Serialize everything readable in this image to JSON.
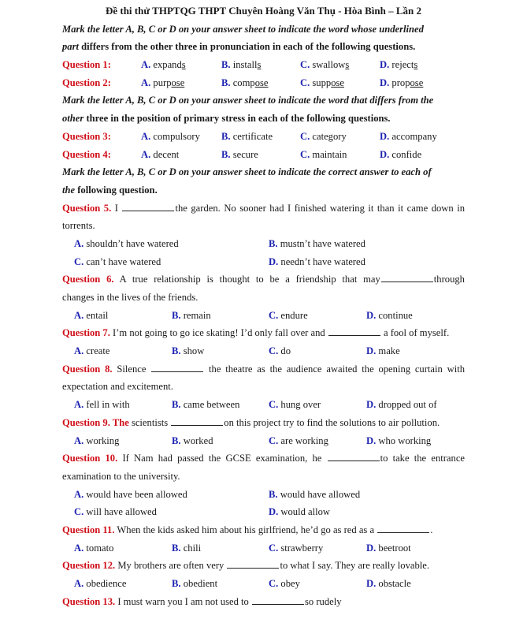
{
  "header": {
    "title": "Đề thi thử THPTQG THPT Chuyên Hoàng Văn Thụ - Hòa Bình – Lần 2"
  },
  "instructions": [
    {
      "line1": "Mark the letter A, B, C or D on your answer sheet to indicate the word whose underlined",
      "line2_italic": "part",
      "line2_rest": " differs from the other three in pronunciation in each of the following questions."
    },
    {
      "line1": "Mark the letter A, B, C or D on your answer sheet to indicate the word that differs from the",
      "line2_italic": "other",
      "line2_rest": " three in the position of primary stress in each of the following questions."
    },
    {
      "line1": "Mark the letter A, B, C or D on your answer sheet to indicate the correct answer to each of",
      "line2_italic": "the",
      "line2_rest": " following question."
    }
  ],
  "phonetic": [
    {
      "label": "Question 1:",
      "options": [
        {
          "letter": "A.",
          "stem": "expand",
          "under": "s"
        },
        {
          "letter": "B.",
          "stem": "install",
          "under": "s"
        },
        {
          "letter": "C.",
          "stem": "swallow",
          "under": "s"
        },
        {
          "letter": "D.",
          "stem": "reject",
          "under": "s"
        }
      ]
    },
    {
      "label": "Question 2:",
      "options": [
        {
          "letter": "A.",
          "stem": "purp",
          "under": "ose"
        },
        {
          "letter": "B.",
          "stem": "comp",
          "under": "ose"
        },
        {
          "letter": "C.",
          "stem": "supp",
          "under": "ose"
        },
        {
          "letter": "D.",
          "stem": "prop",
          "under": "ose"
        }
      ]
    }
  ],
  "stress": [
    {
      "label": "Question 3:",
      "options": [
        {
          "letter": "A.",
          "text": "compulsory"
        },
        {
          "letter": "B.",
          "text": "certificate"
        },
        {
          "letter": "C.",
          "text": "category"
        },
        {
          "letter": "D.",
          "text": "accompany"
        }
      ]
    },
    {
      "label": "Question 4:",
      "options": [
        {
          "letter": "A.",
          "text": "decent"
        },
        {
          "letter": "B.",
          "text": "secure"
        },
        {
          "letter": "C.",
          "text": "maintain"
        },
        {
          "letter": "D.",
          "text": "confide"
        }
      ]
    }
  ],
  "questions": [
    {
      "label": "Question 5.",
      "before": " I ",
      "after": "the garden. No sooner had I finished watering it than it came down in",
      "cont": "torrents.",
      "options": [
        {
          "letter": "A.",
          "text": "shouldn’t have watered"
        },
        {
          "letter": "B.",
          "text": "mustn’t have watered"
        },
        {
          "letter": "C.",
          "text": "can’t have watered"
        },
        {
          "letter": "D.",
          "text": "needn’t have watered"
        }
      ]
    },
    {
      "label": "Question 6.",
      "before": " A true relationship is thought to be a friendship that may",
      "after": "through",
      "cont": "changes in the lives of the friends.",
      "options": [
        {
          "letter": "A.",
          "text": "entail"
        },
        {
          "letter": "B.",
          "text": "remain"
        },
        {
          "letter": "C.",
          "text": "endure"
        },
        {
          "letter": "D.",
          "text": "continue"
        }
      ]
    },
    {
      "label": "Question 7.",
      "before": " I’m not going to go ice skating! I’d only fall over and ",
      "after": " a fool of myself.",
      "options": [
        {
          "letter": "A.",
          "text": "create"
        },
        {
          "letter": "B.",
          "text": "show"
        },
        {
          "letter": "C.",
          "text": "do"
        },
        {
          "letter": "D.",
          "text": "make"
        }
      ]
    },
    {
      "label": "Question 8.",
      "before": " Silence ",
      "after": " the theatre as the audience awaited the opening curtain with",
      "cont": "expectation and excitement.",
      "options": [
        {
          "letter": "A.",
          "text": "fell in with"
        },
        {
          "letter": "B.",
          "text": "came between"
        },
        {
          "letter": "C.",
          "text": "hung over"
        },
        {
          "letter": "D.",
          "text": "dropped out of"
        }
      ]
    },
    {
      "label": "Question 9. The",
      "before": " scientists ",
      "after": "on this project try to find the solutions to air pollution.",
      "options": [
        {
          "letter": "A.",
          "text": "working"
        },
        {
          "letter": "B.",
          "text": "worked"
        },
        {
          "letter": "C.",
          "text": "are working"
        },
        {
          "letter": "D.",
          "text": "who working"
        }
      ]
    },
    {
      "label": "Question 10.",
      "before": " If Nam had passed the GCSE examination, he ",
      "after": "to take the entrance",
      "cont": "examination to the university.",
      "options": [
        {
          "letter": "A.",
          "text": "would have been allowed"
        },
        {
          "letter": "B.",
          "text": "would have allowed"
        },
        {
          "letter": "C.",
          "text": "will have allowed"
        },
        {
          "letter": "D.",
          "text": "would allow"
        }
      ]
    },
    {
      "label": "Question 11.",
      "before": " When the kids asked him about his girlfriend, he’d go as red as a ",
      "after": ".",
      "options": [
        {
          "letter": "A.",
          "text": "tomato"
        },
        {
          "letter": "B.",
          "text": "chili"
        },
        {
          "letter": "C.",
          "text": "strawberry"
        },
        {
          "letter": "D.",
          "text": "beetroot"
        }
      ]
    },
    {
      "label": "Question 12.",
      "before": " My brothers are often very ",
      "after": "to what I say. They are really lovable.",
      "options": [
        {
          "letter": "A.",
          "text": "obedience"
        },
        {
          "letter": "B.",
          "text": "obedient"
        },
        {
          "letter": "C.",
          "text": "obey"
        },
        {
          "letter": "D.",
          "text": "obstacle"
        }
      ]
    },
    {
      "label": "Question 13.",
      "before": " I must warn you I am not used to ",
      "after": "so rudely"
    }
  ],
  "colors": {
    "question_label": "#d0101a",
    "option_letter": "#1c22b0"
  }
}
